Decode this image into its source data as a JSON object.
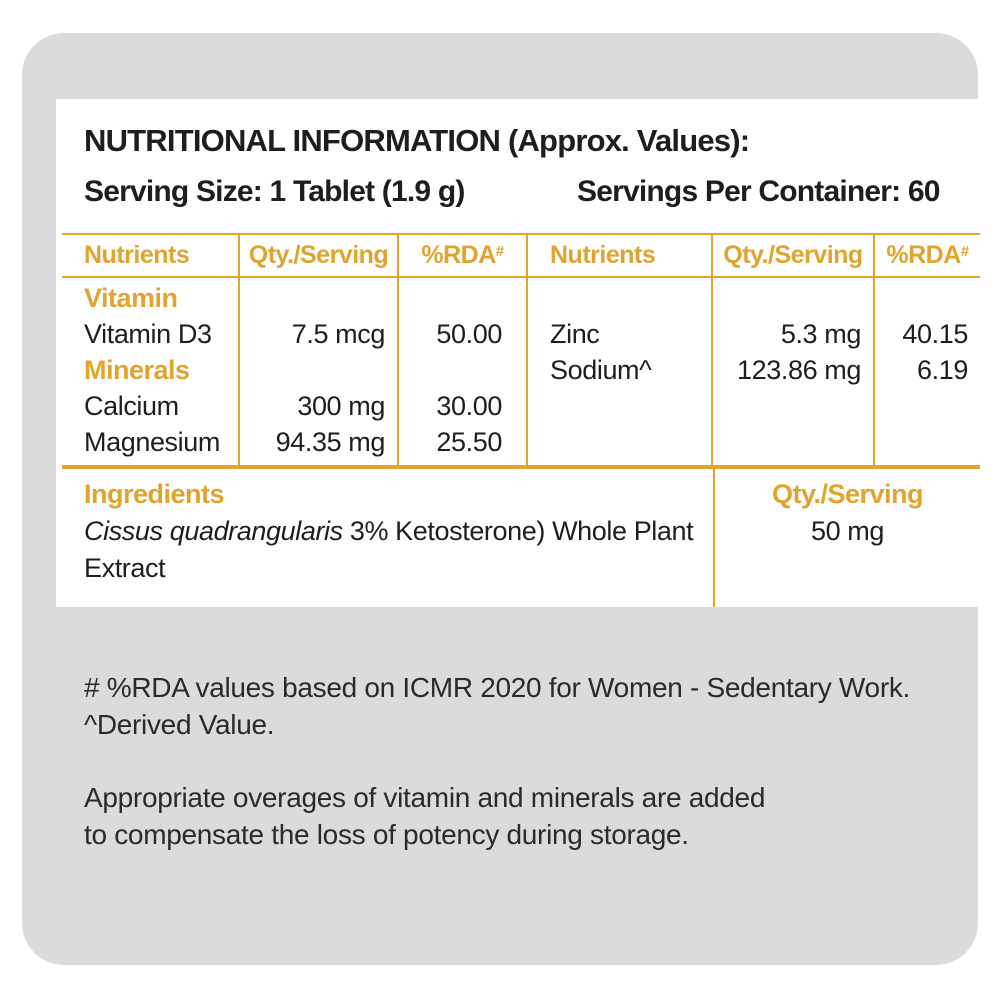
{
  "colors": {
    "accent_gold": "#e2a42c",
    "card_gray": "#dbdbdc",
    "text_black": "#1e1e1c"
  },
  "header": {
    "title": "NUTRITIONAL INFORMATION (Approx. Values):",
    "serving_size": "Serving Size: 1 Tablet (1.9 g)",
    "servings_per_container": "Servings Per Container: 60"
  },
  "table": {
    "headers": {
      "nutrients": "Nutrients",
      "qty": "Qty./Serving",
      "rda": "%RDA",
      "rda_sup": "#"
    },
    "left": {
      "section1": "Vitamin",
      "row1": {
        "name": "Vitamin D3",
        "qty": "7.5 mcg",
        "rda": "50.00"
      },
      "section2": "Minerals",
      "row2": {
        "name": "Calcium",
        "qty": "300 mg",
        "rda": "30.00"
      },
      "row3": {
        "name": "Magnesium",
        "qty": "94.35 mg",
        "rda": "25.50"
      }
    },
    "right": {
      "row1": {
        "name": "Zinc",
        "qty": "5.3 mg",
        "rda": "40.15"
      },
      "row2": {
        "name": "Sodium^",
        "qty": "123.86 mg",
        "rda": "6.19"
      }
    }
  },
  "ingredients": {
    "label": "Ingredients",
    "qty_header": "Qty./Serving",
    "item_italic": "Cissus quadrangularis",
    "item_rest": " 3% Ketosterone) Whole Plant Extract",
    "qty_value": "50 mg"
  },
  "footnotes": {
    "rda_note": "# %RDA values based on ICMR 2020 for Women - Sedentary Work.",
    "derived_note": "^Derived Value.",
    "overage_note": "Appropriate overages of vitamin and minerals are added to compensate the loss of potency during storage."
  }
}
